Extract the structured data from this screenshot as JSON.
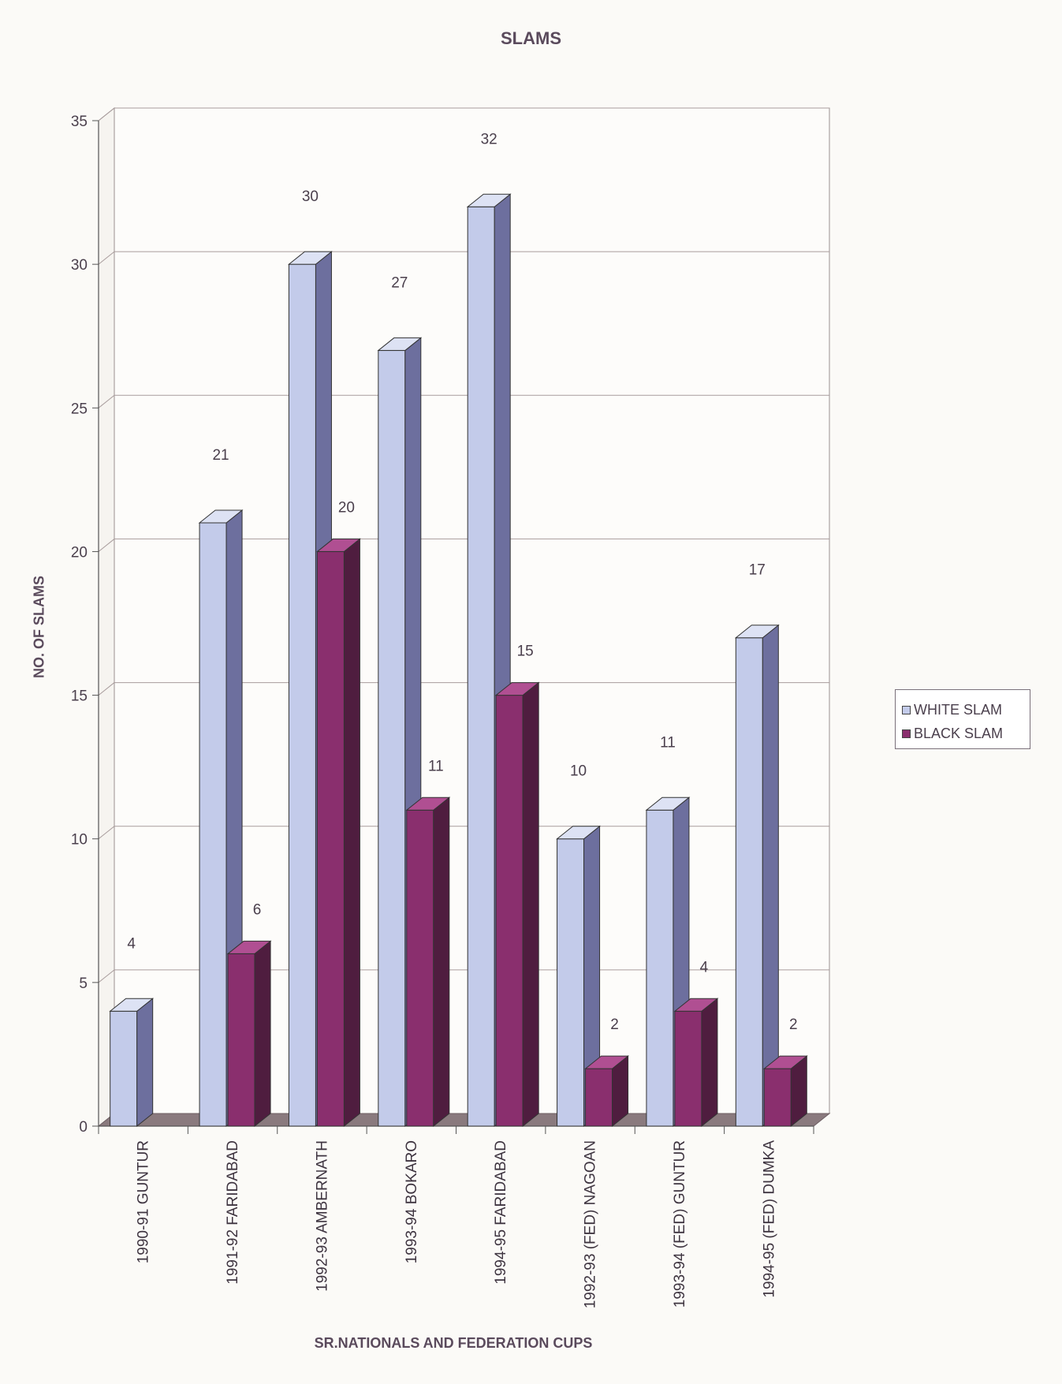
{
  "chart_data": {
    "type": "bar",
    "title": "SLAMS",
    "xlabel": "SR.NATIONALS AND FEDERATION CUPS",
    "ylabel": "NO. OF SLAMS",
    "ylim": [
      0,
      35
    ],
    "yticks": [
      "0",
      "5",
      "10",
      "15",
      "20",
      "25",
      "30",
      "35"
    ],
    "grid": true,
    "legend_position": "right",
    "categories": [
      "1990-91 GUNTUR",
      "1991-92 FARIDABAD",
      "1992-93 AMBERNATH",
      "1993-94 BOKARO",
      "1994-95 FARIDABAD",
      "1992-93 (FED) NAGOAN",
      "1993-94 (FED) GUNTUR",
      "1994-95 (FED) DUMKA"
    ],
    "series": [
      {
        "name": "WHITE SLAM",
        "color": "#c3cbea",
        "side_color": "#6d6f9e",
        "top_color": "#dde2f4",
        "values": [
          4,
          21,
          30,
          27,
          32,
          10,
          11,
          17
        ],
        "labels": [
          "4",
          "21",
          "30",
          "27",
          "32",
          "10",
          "11",
          "17"
        ]
      },
      {
        "name": "BLACK SLAM",
        "color": "#8a2f6e",
        "side_color": "#4f1d3f",
        "top_color": "#b04f92",
        "values": [
          null,
          6,
          20,
          11,
          15,
          2,
          4,
          2
        ],
        "labels": [
          null,
          "6",
          "20",
          "11",
          "15",
          "2",
          "4",
          "2"
        ]
      }
    ]
  }
}
